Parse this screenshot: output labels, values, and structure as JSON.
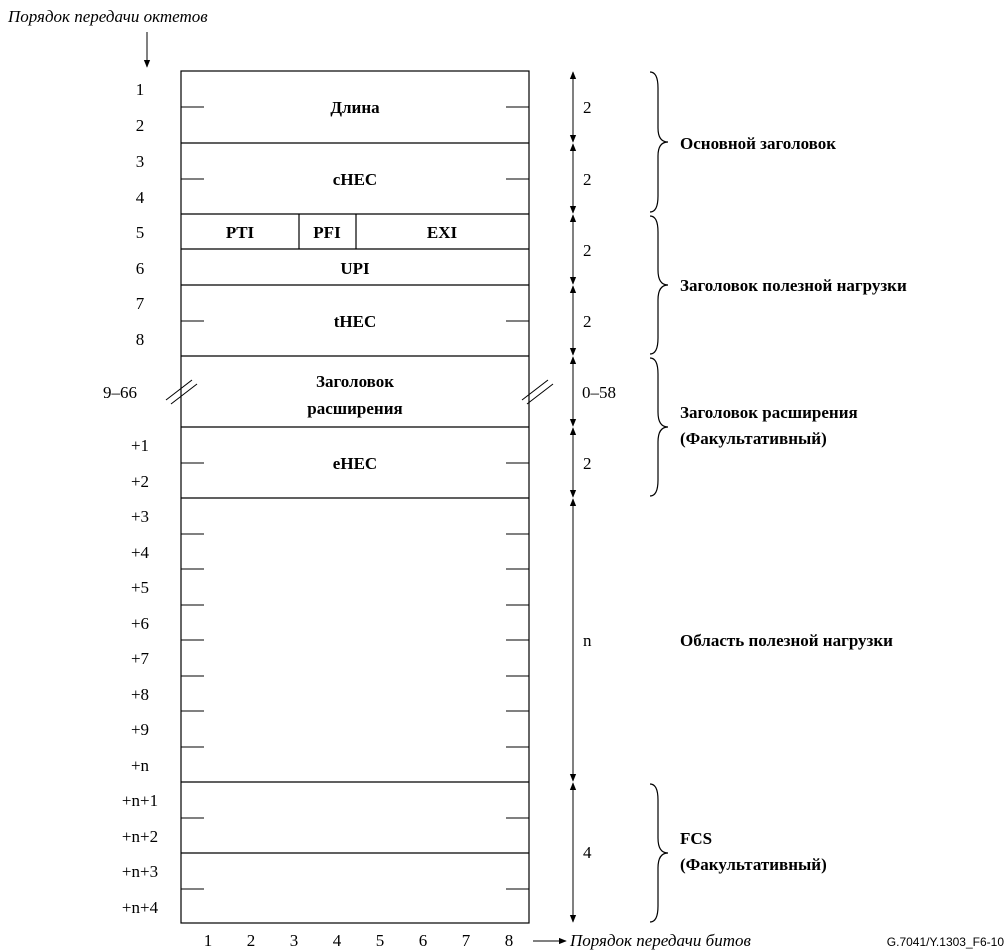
{
  "octet_order_label": "Порядок передачи октетов",
  "bit_order_label": "Порядок передачи битов",
  "figure_id": "G.7041/Y.1303_F6-10",
  "rows": [
    "1",
    "2",
    "3",
    "4",
    "5",
    "6",
    "7",
    "8",
    "9–66",
    "+1",
    "+2",
    "+3",
    "+4",
    "+5",
    "+6",
    "+7",
    "+8",
    "+9",
    "+n",
    "+n+1",
    "+n+2",
    "+n+3",
    "+n+4"
  ],
  "bits": [
    "1",
    "2",
    "3",
    "4",
    "5",
    "6",
    "7",
    "8"
  ],
  "fields": {
    "length": "Длина",
    "chec": "cHEC",
    "pti": "PTI",
    "pfi": "PFI",
    "exi": "EXI",
    "upi": "UPI",
    "thec": "tHEC",
    "ext_line1": "Заголовок",
    "ext_line2": "расширения",
    "ehec": "eHEC"
  },
  "sizes": [
    "2",
    "2",
    "2",
    "2",
    "0–58",
    "2",
    "n",
    "4"
  ],
  "groups": {
    "core": "Основной заголовок",
    "payload_header": "Заголовок полезной нагрузки",
    "ext_line1": "Заголовок расширения",
    "ext_line2": "(Факультативный)",
    "payload_area": "Область полезной нагрузки",
    "fcs_line1": "FCS",
    "fcs_line2": "(Факультативный)"
  }
}
